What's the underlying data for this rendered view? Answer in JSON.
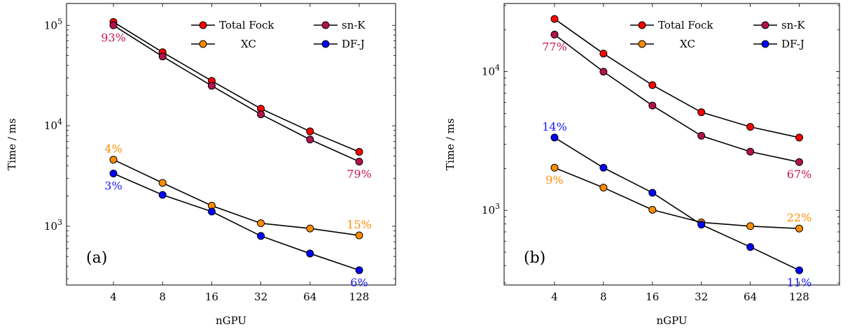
{
  "chart_data": [
    {
      "type": "line",
      "panel_label": "(a)",
      "xlabel": "nGPU",
      "ylabel": "Time / ms",
      "yscale": "log",
      "ylim": [
        260,
        165000
      ],
      "x": [
        4,
        8,
        16,
        32,
        64,
        128
      ],
      "x_tick_labels": [
        "4",
        "8",
        "16",
        "32",
        "64",
        "128"
      ],
      "y_ticks": [
        {
          "value": 1000,
          "base": "10",
          "exp": "3"
        },
        {
          "value": 10000,
          "base": "10",
          "exp": "4"
        },
        {
          "value": 100000,
          "base": "10",
          "exp": "5"
        }
      ],
      "grid": false,
      "legend_position": "top-right",
      "series": [
        {
          "key": "total",
          "name": "Total Fock",
          "color": "#ff0000",
          "values": [
            108000,
            54000,
            28000,
            14800,
            8800,
            5500
          ]
        },
        {
          "key": "snk",
          "name": "sn-K",
          "color": "#b3124f",
          "values": [
            100000,
            49000,
            25000,
            13000,
            7300,
            4400
          ]
        },
        {
          "key": "xc",
          "name": "XC",
          "color": "#ff8c00",
          "values": [
            4600,
            2700,
            1600,
            1070,
            950,
            810
          ]
        },
        {
          "key": "dfj",
          "name": "DF-J",
          "color": "#0000ff",
          "values": [
            3350,
            2050,
            1400,
            800,
            535,
            365
          ]
        }
      ],
      "annotations": [
        {
          "text": "93%",
          "series": "snk",
          "x_index": 0,
          "color": "#c8184f",
          "place": "below"
        },
        {
          "text": "79%",
          "series": "snk",
          "x_index": 5,
          "color": "#c8184f",
          "place": "below"
        },
        {
          "text": "4%",
          "series": "xc",
          "x_index": 0,
          "color": "#ff8c00",
          "place": "above"
        },
        {
          "text": "15%",
          "series": "xc",
          "x_index": 5,
          "color": "#ff8c00",
          "place": "above"
        },
        {
          "text": "3%",
          "series": "dfj",
          "x_index": 0,
          "color": "#1a1aff",
          "place": "below"
        },
        {
          "text": "6%",
          "series": "dfj",
          "x_index": 5,
          "color": "#1a1aff",
          "place": "below"
        }
      ]
    },
    {
      "type": "line",
      "panel_label": "(b)",
      "xlabel": "nGPU",
      "ylabel": "Time / ms",
      "yscale": "log",
      "ylim": [
        290,
        31000
      ],
      "x": [
        4,
        8,
        16,
        32,
        64,
        128
      ],
      "x_tick_labels": [
        "4",
        "8",
        "16",
        "32",
        "64",
        "128"
      ],
      "y_ticks": [
        {
          "value": 1000,
          "base": "10",
          "exp": "3"
        },
        {
          "value": 10000,
          "base": "10",
          "exp": "4"
        }
      ],
      "grid": false,
      "legend_position": "top-right",
      "series": [
        {
          "key": "total",
          "name": "Total Fock",
          "color": "#ff0000",
          "values": [
            24000,
            13500,
            8000,
            5100,
            4000,
            3350
          ]
        },
        {
          "key": "snk",
          "name": "sn-K",
          "color": "#b3124f",
          "values": [
            18500,
            10000,
            5700,
            3450,
            2650,
            2230
          ]
        },
        {
          "key": "xc",
          "name": "XC",
          "color": "#ff8c00",
          "values": [
            2030,
            1460,
            1010,
            820,
            770,
            740
          ]
        },
        {
          "key": "dfj",
          "name": "DF-J",
          "color": "#0000ff",
          "values": [
            3350,
            2030,
            1340,
            790,
            545,
            370
          ]
        }
      ],
      "annotations": [
        {
          "text": "77%",
          "series": "snk",
          "x_index": 0,
          "color": "#c8184f",
          "place": "below"
        },
        {
          "text": "67%",
          "series": "snk",
          "x_index": 5,
          "color": "#c8184f",
          "place": "below"
        },
        {
          "text": "14%",
          "series": "dfj",
          "x_index": 0,
          "color": "#1a1aff",
          "place": "above"
        },
        {
          "text": "11%",
          "series": "dfj",
          "x_index": 5,
          "color": "#1a1aff",
          "place": "below"
        },
        {
          "text": "9%",
          "series": "xc",
          "x_index": 0,
          "color": "#ff8c00",
          "place": "below"
        },
        {
          "text": "22%",
          "series": "xc",
          "x_index": 5,
          "color": "#ff8c00",
          "place": "above"
        }
      ]
    }
  ]
}
